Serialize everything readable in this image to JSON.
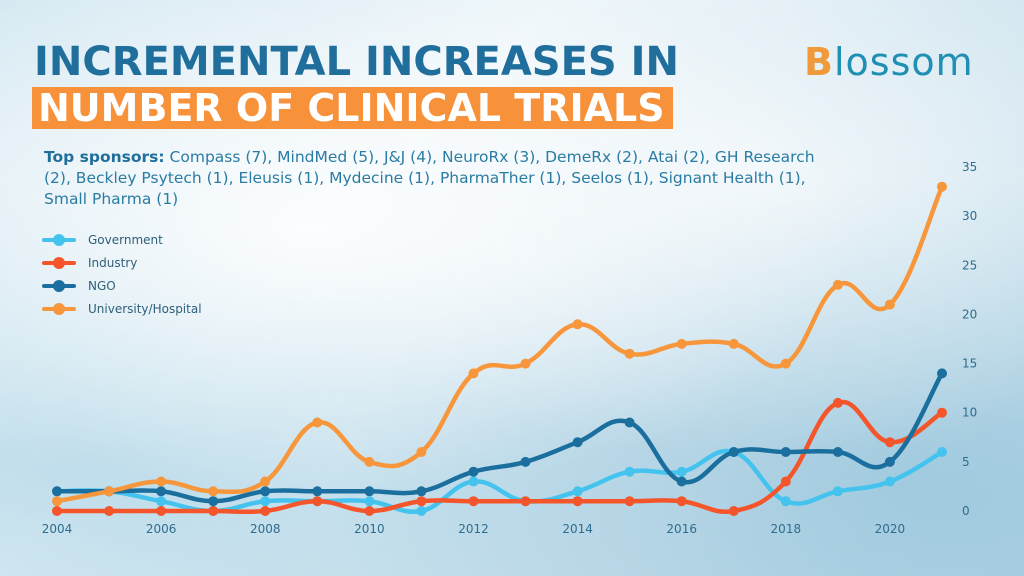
{
  "header": {
    "title_line1": "INCREMENTAL INCREASES IN",
    "title_line2": "NUMBER OF CLINICAL TRIALS"
  },
  "logo": {
    "first_letter": "B",
    "rest": "lossom"
  },
  "sponsors": {
    "label": "Top sponsors:",
    "text": "Compass (7), MindMed (5), J&J (4), NeuroRx (3), DemeRx (2), Atai (2), GH Research (2), Beckley Psytech (1), Eleusis (1), Mydecine (1), PharmaTher (1), Seelos (1), Signant Health (1), Small Pharma (1)"
  },
  "colors": {
    "government": "#45c3ef",
    "industry": "#f4552a",
    "ngo": "#1b6f9e",
    "university": "#f7963a"
  },
  "chart_data": {
    "type": "line",
    "x": [
      2004,
      2005,
      2006,
      2007,
      2008,
      2009,
      2010,
      2011,
      2012,
      2013,
      2014,
      2015,
      2016,
      2017,
      2018,
      2019,
      2020,
      2021
    ],
    "x_ticks": [
      2004,
      2006,
      2008,
      2010,
      2012,
      2014,
      2016,
      2018,
      2020
    ],
    "y_ticks": [
      0,
      5,
      10,
      15,
      20,
      25,
      30,
      35
    ],
    "ylim": [
      0,
      35
    ],
    "y_axis_side": "right",
    "legend_position": "top-left",
    "grid": false,
    "series": [
      {
        "name": "Government",
        "color_key": "government",
        "values": [
          2,
          2,
          1,
          0,
          1,
          1,
          1,
          0,
          3,
          1,
          2,
          4,
          4,
          6,
          1,
          2,
          3,
          6
        ]
      },
      {
        "name": "Industry",
        "color_key": "industry",
        "values": [
          0,
          0,
          0,
          0,
          0,
          1,
          0,
          1,
          1,
          1,
          1,
          1,
          1,
          0,
          3,
          11,
          7,
          10
        ]
      },
      {
        "name": "NGO",
        "color_key": "ngo",
        "values": [
          2,
          2,
          2,
          1,
          2,
          2,
          2,
          2,
          4,
          5,
          7,
          9,
          3,
          6,
          6,
          6,
          5,
          14
        ]
      },
      {
        "name": "University/Hospital",
        "color_key": "university",
        "values": [
          1,
          2,
          3,
          2,
          3,
          9,
          5,
          6,
          14,
          15,
          19,
          16,
          17,
          17,
          15,
          23,
          21,
          33
        ]
      }
    ]
  }
}
